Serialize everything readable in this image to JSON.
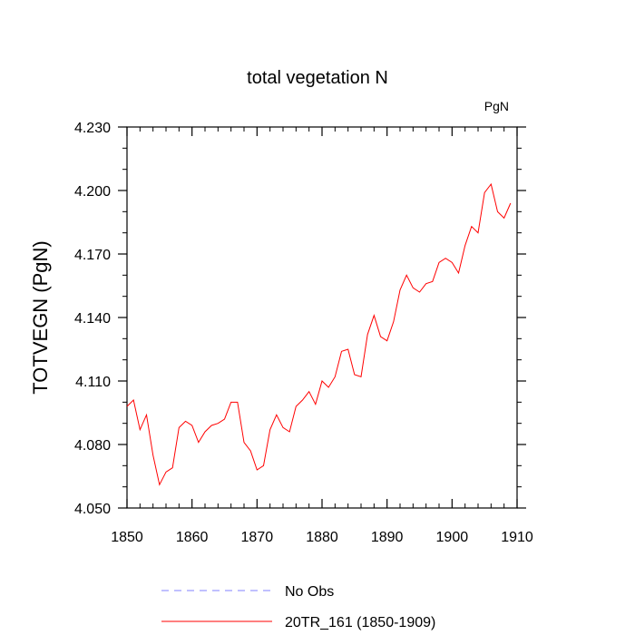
{
  "chart_data": {
    "type": "line",
    "title": "total vegetation N",
    "units_label": "PgN",
    "ylabel": "TOTVEGN  (PgN)",
    "xlabel": "",
    "xlim": [
      1850,
      1910
    ],
    "ylim": [
      4.05,
      4.23
    ],
    "x_ticks": [
      1850,
      1860,
      1870,
      1880,
      1890,
      1900,
      1910
    ],
    "x_tick_labels": [
      "1850",
      "1860",
      "1870",
      "1880",
      "1890",
      "1900",
      "1910"
    ],
    "y_ticks": [
      4.05,
      4.08,
      4.11,
      4.14,
      4.17,
      4.2,
      4.23
    ],
    "y_tick_labels": [
      "4.050",
      "4.080",
      "4.110",
      "4.140",
      "4.170",
      "4.200",
      "4.230"
    ],
    "grid": false,
    "legend_position": "bottom",
    "series": [
      {
        "name": "No Obs",
        "color": "#8080ff",
        "dash": true,
        "x": [],
        "values": []
      },
      {
        "name": "20TR_161 (1850-1909)",
        "color": "#ff0000",
        "dash": false,
        "x": [
          1850,
          1851,
          1852,
          1853,
          1854,
          1855,
          1856,
          1857,
          1858,
          1859,
          1860,
          1861,
          1862,
          1863,
          1864,
          1865,
          1866,
          1867,
          1868,
          1869,
          1870,
          1871,
          1872,
          1873,
          1874,
          1875,
          1876,
          1877,
          1878,
          1879,
          1880,
          1881,
          1882,
          1883,
          1884,
          1885,
          1886,
          1887,
          1888,
          1889,
          1890,
          1891,
          1892,
          1893,
          1894,
          1895,
          1896,
          1897,
          1898,
          1899,
          1900,
          1901,
          1902,
          1903,
          1904,
          1905,
          1906,
          1907,
          1908,
          1909
        ],
        "values": [
          4.098,
          4.101,
          4.087,
          4.094,
          4.075,
          4.061,
          4.067,
          4.069,
          4.088,
          4.091,
          4.089,
          4.081,
          4.086,
          4.089,
          4.09,
          4.092,
          4.1,
          4.1,
          4.081,
          4.077,
          4.068,
          4.07,
          4.087,
          4.094,
          4.088,
          4.086,
          4.098,
          4.101,
          4.105,
          4.099,
          4.11,
          4.107,
          4.112,
          4.124,
          4.125,
          4.113,
          4.112,
          4.132,
          4.141,
          4.131,
          4.129,
          4.138,
          4.153,
          4.16,
          4.154,
          4.152,
          4.156,
          4.157,
          4.166,
          4.168,
          4.166,
          4.161,
          4.174,
          4.183,
          4.18,
          4.199,
          4.203,
          4.19,
          4.187,
          4.194
        ]
      }
    ]
  }
}
